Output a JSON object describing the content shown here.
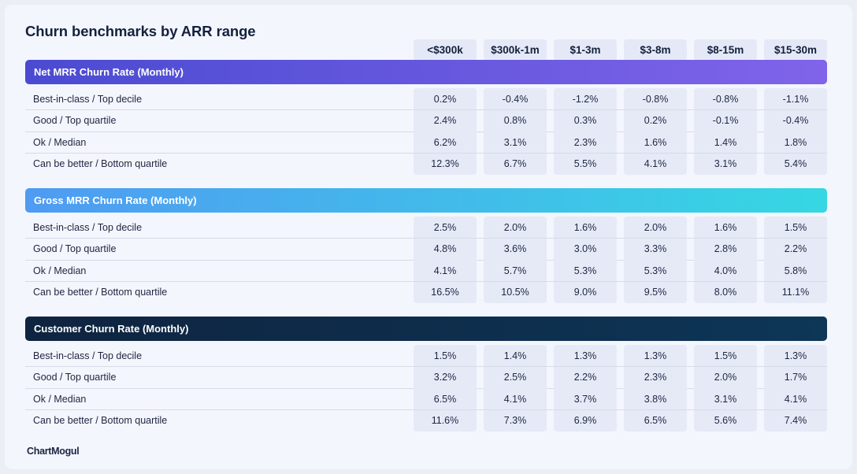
{
  "chart_data": {
    "type": "table",
    "title": "Churn benchmarks by ARR range",
    "columns": [
      "<$300k",
      "$300k-1m",
      "$1-3m",
      "$3-8m",
      "$8-15m",
      "$15-30m"
    ],
    "sections": [
      {
        "title": "Net MRR Churn Rate (Monthly)",
        "gradient": [
          "#4a4bd1",
          "#8064ea"
        ],
        "rows": [
          {
            "label": "Best-in-class / Top decile",
            "values": [
              "0.2%",
              "-0.4%",
              "-1.2%",
              "-0.8%",
              "-0.8%",
              "-1.1%"
            ]
          },
          {
            "label": "Good / Top quartile",
            "values": [
              "2.4%",
              "0.8%",
              "0.3%",
              "0.2%",
              "-0.1%",
              "-0.4%"
            ]
          },
          {
            "label": "Ok / Median",
            "values": [
              "6.2%",
              "3.1%",
              "2.3%",
              "1.6%",
              "1.4%",
              "1.8%"
            ]
          },
          {
            "label": "Can be better / Bottom quartile",
            "values": [
              "12.3%",
              "6.7%",
              "5.5%",
              "4.1%",
              "3.1%",
              "5.4%"
            ]
          }
        ]
      },
      {
        "title": "Gross MRR Churn Rate (Monthly)",
        "gradient": [
          "#4f9bf2",
          "#36d7e3"
        ],
        "rows": [
          {
            "label": "Best-in-class / Top decile",
            "values": [
              "2.5%",
              "2.0%",
              "1.6%",
              "2.0%",
              "1.6%",
              "1.5%"
            ]
          },
          {
            "label": "Good / Top quartile",
            "values": [
              "4.8%",
              "3.6%",
              "3.0%",
              "3.3%",
              "2.8%",
              "2.2%"
            ]
          },
          {
            "label": "Ok / Median",
            "values": [
              "4.1%",
              "5.7%",
              "5.3%",
              "5.3%",
              "4.0%",
              "5.8%"
            ]
          },
          {
            "label": "Can be better / Bottom quartile",
            "values": [
              "16.5%",
              "10.5%",
              "9.0%",
              "9.5%",
              "8.0%",
              "11.1%"
            ]
          }
        ]
      },
      {
        "title": "Customer Churn Rate (Monthly)",
        "gradient": [
          "#0f2440",
          "#0d3657"
        ],
        "rows": [
          {
            "label": "Best-in-class / Top decile",
            "values": [
              "1.5%",
              "1.4%",
              "1.3%",
              "1.3%",
              "1.5%",
              "1.3%"
            ]
          },
          {
            "label": "Good / Top quartile",
            "values": [
              "3.2%",
              "2.5%",
              "2.2%",
              "2.3%",
              "2.0%",
              "1.7%"
            ]
          },
          {
            "label": "Ok / Median",
            "values": [
              "6.5%",
              "4.1%",
              "3.7%",
              "3.8%",
              "3.1%",
              "4.1%"
            ]
          },
          {
            "label": "Can be better / Bottom quartile",
            "values": [
              "11.6%",
              "7.3%",
              "6.9%",
              "6.5%",
              "5.6%",
              "7.4%"
            ]
          }
        ]
      }
    ]
  },
  "brand": {
    "logo_text": "ChartMogul"
  }
}
